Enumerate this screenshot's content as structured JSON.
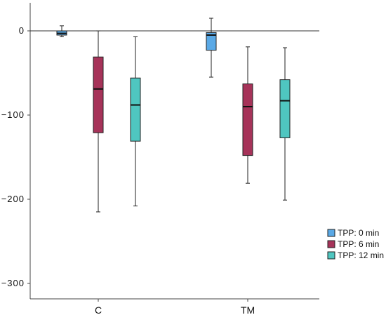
{
  "chart_data": {
    "type": "box",
    "categories": [
      "C",
      "TM"
    ],
    "ylim": [
      -320,
      32
    ],
    "yticks": [
      0,
      -100,
      -200,
      -300
    ],
    "reference_line": 0,
    "legend_position": "right",
    "series": [
      {
        "name": "TPP: 0 min",
        "color": "#5AA9E6",
        "boxes": [
          {
            "min": -7,
            "q1": -5,
            "median": -3,
            "q3": 0,
            "max": 6
          },
          {
            "min": -55,
            "q1": -23,
            "median": -5,
            "q3": -2,
            "max": 15
          }
        ]
      },
      {
        "name": "TPP: 6 min",
        "color": "#A63359",
        "boxes": [
          {
            "min": -215,
            "q1": -121,
            "median": -69,
            "q3": -31,
            "max": 0
          },
          {
            "min": -181,
            "q1": -148,
            "median": -90,
            "q3": -63,
            "max": -19
          }
        ]
      },
      {
        "name": "TPP: 12 min",
        "color": "#4FC6C0",
        "boxes": [
          {
            "min": -208,
            "q1": -131,
            "median": -88,
            "q3": -56,
            "max": -7
          },
          {
            "min": -201,
            "q1": -127,
            "median": -83,
            "q3": -58,
            "max": -20
          }
        ]
      }
    ]
  }
}
